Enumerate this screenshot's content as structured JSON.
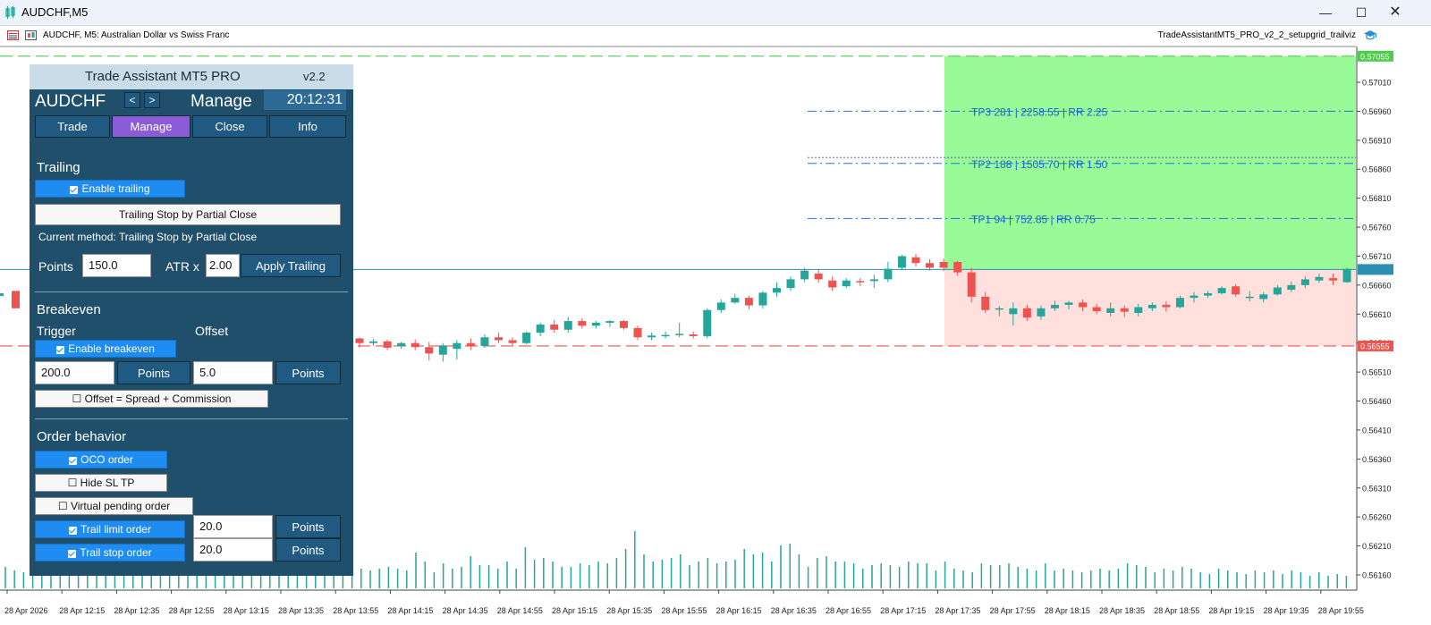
{
  "window": {
    "title": "AUDCHF,M5",
    "controls": [
      "minimize",
      "maximize",
      "close"
    ]
  },
  "chart_header": {
    "symbol_desc": "AUDCHF, M5:  Australian Dollar vs Swiss Franc",
    "expert_name": "TradeAssistantMT5_PRO_v2_2_setupgrid_trailviz"
  },
  "colors": {
    "bull": "#26a69a",
    "bear": "#ef5350",
    "tp_zone": "#98fb98",
    "sl_zone": "#ffe0dc",
    "panel_bg": "#1f4f6b",
    "accent_purple": "#8c5cd6",
    "accent_blue": "#1e8cf0"
  },
  "panel": {
    "title": "Trade Assistant MT5 PRO",
    "version": "v2.2",
    "symbol": "AUDCHF",
    "prev_label": "<",
    "next_label": ">",
    "mode": "Manage",
    "clock": "20:12:31",
    "tabs": [
      {
        "label": "Trade",
        "active": false
      },
      {
        "label": "Manage",
        "active": true
      },
      {
        "label": "Close",
        "active": false
      },
      {
        "label": "Info",
        "active": false
      }
    ],
    "trailing": {
      "heading": "Trailing",
      "enable_label": "Enable trailing",
      "method_button": "Trailing Stop by Partial Close",
      "current_method": "Current method: Trailing Stop by Partial Close",
      "points_label": "Points",
      "points_value": "150.0",
      "atr_label": "ATR x",
      "atr_value": "2.00",
      "apply_label": "Apply Trailing"
    },
    "breakeven": {
      "heading": "Breakeven",
      "trigger_label": "Trigger",
      "offset_label": "Offset",
      "enable_label": "Enable breakeven",
      "trigger_value": "200.0",
      "trigger_unit": "Points",
      "offset_value": "5.0",
      "offset_unit": "Points",
      "spread_label": "☐ Offset = Spread + Commission"
    },
    "order_behavior": {
      "heading": "Order behavior",
      "oco_label": "OCO order",
      "hide_sltp_label": "☐ Hide SL TP",
      "virtual_label": "☐ Virtual pending order",
      "trail_limit_label": "Trail limit order",
      "trail_limit_value": "20.0",
      "trail_limit_unit": "Points",
      "trail_stop_label": "Trail stop order",
      "trail_stop_value": "20.0",
      "trail_stop_unit": "Points"
    }
  },
  "chart_data": {
    "type": "candlestick",
    "symbol": "AUDCHF",
    "timeframe": "M5",
    "y_ticks": [
      "0.57010",
      "0.56960",
      "0.56910",
      "0.56860",
      "0.56810",
      "0.56760",
      "0.56710",
      "0.56660",
      "0.56610",
      "0.56560",
      "0.56510",
      "0.56460",
      "0.56410",
      "0.56360",
      "0.56310",
      "0.56260",
      "0.56210",
      "0.56160"
    ],
    "ylim": [
      0.5614,
      0.5708
    ],
    "x_ticks": [
      "28 Apr 2026",
      "28 Apr 12:15",
      "28 Apr 12:35",
      "28 Apr 12:55",
      "28 Apr 13:15",
      "28 Apr 13:35",
      "28 Apr 13:55",
      "28 Apr 14:15",
      "28 Apr 14:35",
      "28 Apr 14:55",
      "28 Apr 15:15",
      "28 Apr 15:35",
      "28 Apr 15:55",
      "28 Apr 16:15",
      "28 Apr 16:35",
      "28 Apr 16:55",
      "28 Apr 17:15",
      "28 Apr 17:35",
      "28 Apr 17:55",
      "28 Apr 18:15",
      "28 Apr 18:35",
      "28 Apr 18:55",
      "28 Apr 19:15",
      "28 Apr 19:35",
      "28 Apr 19:55"
    ],
    "price_labels": [
      {
        "text": "0.57055",
        "price": 0.57055,
        "color": "#4ccd4c"
      },
      {
        "text": "0.56555",
        "price": 0.56555,
        "color": "#ef5350"
      }
    ],
    "levels": [
      {
        "label": "TP3 281 | 2258.55 | RR 2.25",
        "price": 0.5696
      },
      {
        "label": "TP2 188 | 1505.70 | RR 1.50",
        "price": 0.5687
      },
      {
        "label": "TP1 94 | 752.85 | RR 0.75",
        "price": 0.56775
      }
    ],
    "entry_price": 0.56687,
    "tp_price": 0.57055,
    "sl_price": 0.56555,
    "candles_visible": [
      [
        0.56568,
        0.5657,
        0.56552,
        0.5656
      ],
      [
        0.5656,
        0.56567,
        0.56555,
        0.56563
      ],
      [
        0.56563,
        0.56566,
        0.56548,
        0.56552
      ],
      [
        0.56555,
        0.56562,
        0.5655,
        0.5656
      ],
      [
        0.5656,
        0.56566,
        0.56548,
        0.56553
      ],
      [
        0.56553,
        0.56562,
        0.5653,
        0.56542
      ],
      [
        0.5654,
        0.5656,
        0.56528,
        0.56556
      ],
      [
        0.5655,
        0.56565,
        0.56532,
        0.5656
      ],
      [
        0.5656,
        0.56568,
        0.56548,
        0.56555
      ],
      [
        0.56555,
        0.56575,
        0.56552,
        0.5657
      ],
      [
        0.5657,
        0.56578,
        0.5656,
        0.56565
      ],
      [
        0.56565,
        0.5657,
        0.56556,
        0.5656
      ],
      [
        0.5656,
        0.5658,
        0.56558,
        0.56578
      ],
      [
        0.56578,
        0.56595,
        0.56572,
        0.56592
      ],
      [
        0.56592,
        0.566,
        0.56578,
        0.56583
      ],
      [
        0.56583,
        0.56605,
        0.56578,
        0.56598
      ],
      [
        0.56598,
        0.56603,
        0.56585,
        0.5659
      ],
      [
        0.5659,
        0.56598,
        0.56585,
        0.56595
      ],
      [
        0.56595,
        0.566,
        0.56588,
        0.56598
      ],
      [
        0.56598,
        0.566,
        0.56583,
        0.56586
      ],
      [
        0.56586,
        0.5659,
        0.56565,
        0.5657
      ],
      [
        0.5657,
        0.56578,
        0.56565,
        0.56573
      ],
      [
        0.56573,
        0.5658,
        0.56568,
        0.56574
      ],
      [
        0.56574,
        0.56595,
        0.5657,
        0.56576
      ],
      [
        0.56575,
        0.5658,
        0.56568,
        0.56572
      ],
      [
        0.56572,
        0.5662,
        0.56568,
        0.56617
      ],
      [
        0.56617,
        0.56635,
        0.56612,
        0.5663
      ],
      [
        0.5663,
        0.56645,
        0.56628,
        0.56638
      ],
      [
        0.56638,
        0.56642,
        0.56618,
        0.56625
      ],
      [
        0.56625,
        0.5665,
        0.5662,
        0.56647
      ],
      [
        0.56647,
        0.56665,
        0.5664,
        0.56655
      ],
      [
        0.56655,
        0.56675,
        0.5665,
        0.5667
      ],
      [
        0.5667,
        0.5669,
        0.56665,
        0.56685
      ],
      [
        0.5668,
        0.56688,
        0.56664,
        0.5667
      ],
      [
        0.56668,
        0.56675,
        0.5665,
        0.56656
      ],
      [
        0.56658,
        0.56672,
        0.56655,
        0.56668
      ],
      [
        0.56667,
        0.56672,
        0.56658,
        0.56666
      ],
      [
        0.56667,
        0.56678,
        0.56655,
        0.5667
      ],
      [
        0.5667,
        0.567,
        0.56665,
        0.56688
      ],
      [
        0.5669,
        0.56712,
        0.56686,
        0.5671
      ],
      [
        0.56708,
        0.56714,
        0.56692,
        0.56698
      ],
      [
        0.56698,
        0.56705,
        0.56685,
        0.5669
      ],
      [
        0.567,
        0.56706,
        0.56684,
        0.5669
      ],
      [
        0.567,
        0.56702,
        0.56676,
        0.56682
      ],
      [
        0.56682,
        0.5669,
        0.5663,
        0.5664
      ],
      [
        0.5664,
        0.56648,
        0.56612,
        0.56617
      ],
      [
        0.56618,
        0.56624,
        0.56606,
        0.5662
      ],
      [
        0.5661,
        0.5663,
        0.5659,
        0.5662
      ],
      [
        0.5662,
        0.56626,
        0.56598,
        0.56604
      ],
      [
        0.56606,
        0.56625,
        0.566,
        0.5662
      ],
      [
        0.5662,
        0.56633,
        0.56615,
        0.56626
      ],
      [
        0.56626,
        0.56633,
        0.56618,
        0.5663
      ],
      [
        0.5663,
        0.56635,
        0.56615,
        0.56622
      ],
      [
        0.56622,
        0.56628,
        0.5661,
        0.56615
      ],
      [
        0.56612,
        0.5663,
        0.56606,
        0.5662
      ],
      [
        0.5662,
        0.56625,
        0.56605,
        0.56614
      ],
      [
        0.56612,
        0.56628,
        0.56606,
        0.56622
      ],
      [
        0.5662,
        0.5663,
        0.56615,
        0.56626
      ],
      [
        0.56626,
        0.56632,
        0.56614,
        0.56622
      ],
      [
        0.56622,
        0.56642,
        0.5662,
        0.56638
      ],
      [
        0.56638,
        0.56648,
        0.5663,
        0.56642
      ],
      [
        0.56642,
        0.5665,
        0.56638,
        0.56646
      ],
      [
        0.56646,
        0.56658,
        0.56644,
        0.56655
      ],
      [
        0.56658,
        0.56662,
        0.5664,
        0.56644
      ],
      [
        0.5664,
        0.5665,
        0.56632,
        0.5664
      ],
      [
        0.56636,
        0.56648,
        0.5663,
        0.56644
      ],
      [
        0.56644,
        0.5666,
        0.56642,
        0.56656
      ],
      [
        0.56652,
        0.56666,
        0.56648,
        0.5666
      ],
      [
        0.5666,
        0.56675,
        0.56655,
        0.5667
      ],
      [
        0.56668,
        0.5668,
        0.56664,
        0.56674
      ],
      [
        0.56672,
        0.5668,
        0.5666,
        0.56668
      ],
      [
        0.56665,
        0.5669,
        0.56664,
        0.56688
      ],
      [
        0.56688,
        0.56692,
        0.56672,
        0.56676
      ],
      [
        0.56678,
        0.56686,
        0.56666,
        0.5667
      ],
      [
        0.56666,
        0.56686,
        0.56664,
        0.56684
      ],
      [
        0.56684,
        0.56696,
        0.56682,
        0.5669
      ]
    ],
    "volumes": [
      24,
      20,
      18,
      22,
      22,
      24,
      23,
      20,
      20,
      22,
      22,
      21,
      19,
      18,
      16,
      14,
      18,
      26,
      30,
      30,
      26,
      24,
      26,
      26,
      22,
      24,
      28,
      22,
      24,
      20,
      18,
      18,
      22,
      26,
      24,
      22,
      28,
      28,
      20,
      22,
      20,
      22,
      24,
      22,
      20,
      40,
      30,
      18,
      28,
      22,
      24,
      36,
      26,
      26,
      22,
      30,
      22,
      46,
      32,
      34,
      30,
      24,
      24,
      28,
      26,
      30,
      28,
      34,
      44,
      64,
      38,
      30,
      32,
      34,
      38,
      26,
      30,
      34,
      28,
      30,
      32,
      44,
      38,
      40,
      30,
      48,
      50,
      38,
      24,
      34,
      36,
      30,
      30,
      28,
      22,
      26,
      28,
      26,
      24,
      30,
      28,
      28,
      20,
      30,
      22,
      20,
      18,
      28,
      26,
      26,
      28,
      24,
      22,
      20,
      28,
      20,
      22,
      20,
      18,
      20,
      22,
      20,
      22,
      28,
      26,
      24,
      18,
      22,
      20,
      24,
      22,
      18,
      16,
      22,
      20,
      18,
      16,
      20,
      18,
      20,
      16,
      20,
      18,
      14,
      18,
      14,
      16,
      14,
      10
    ]
  }
}
